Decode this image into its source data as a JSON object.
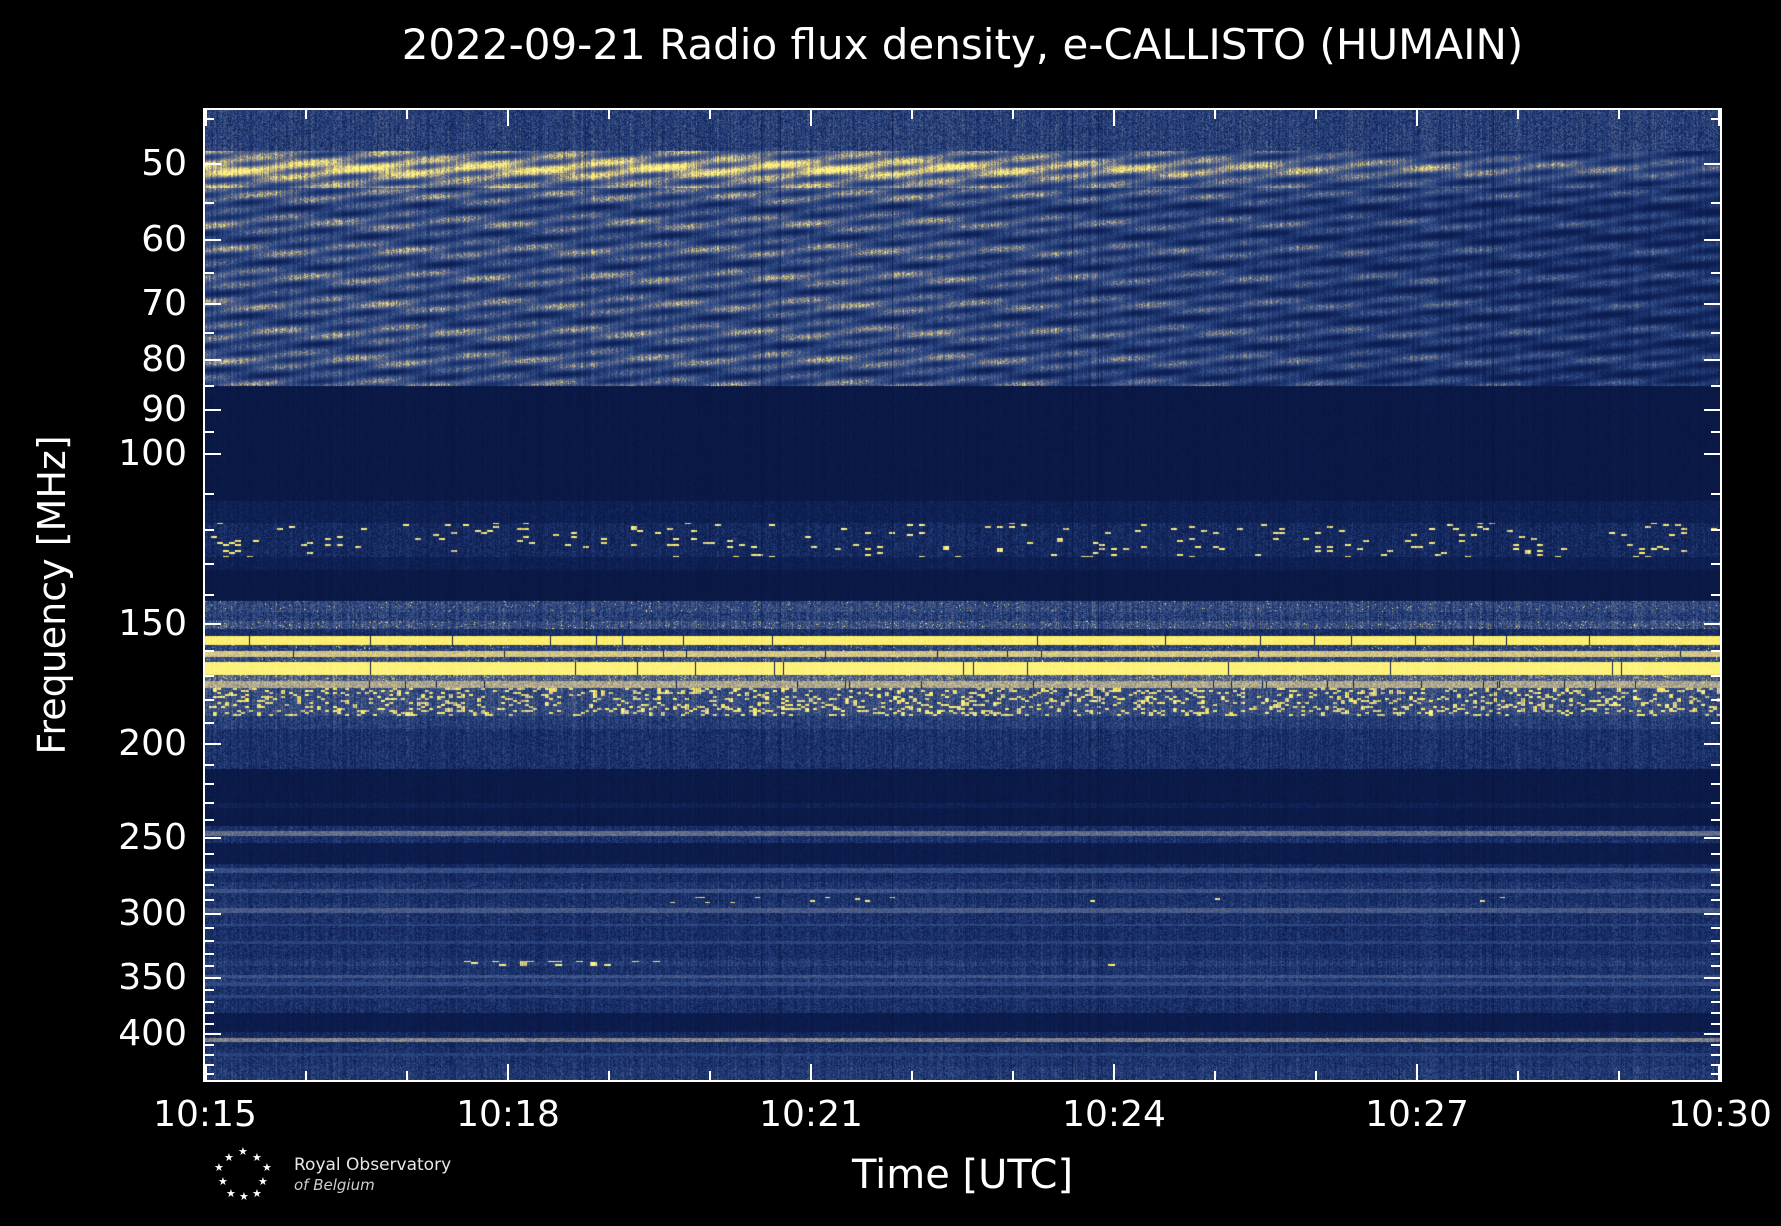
{
  "figure": {
    "background": "#000000",
    "text_color": "#ffffff",
    "axis_color": "#ffffff"
  },
  "logo": {
    "icon": "star-constellation",
    "line1": "Royal Observatory",
    "line2": "of Belgium"
  },
  "chart_data": {
    "type": "heatmap",
    "subtype": "radio-spectrogram",
    "title": "2022-09-21 Radio flux density, e-CALLISTO (HUMAIN)",
    "xlabel": "Time [UTC]",
    "ylabel": "Frequency [MHz]",
    "x_start": "10:15",
    "x_end": "10:30",
    "x_span_minutes": 15,
    "x_minor_step_minutes": 1,
    "x_ticks": [
      "10:15",
      "10:18",
      "10:21",
      "10:24",
      "10:27",
      "10:30"
    ],
    "y_scale": "log",
    "y_axis_inverted": true,
    "y_range_mhz": [
      44,
      446
    ],
    "y_ticks": [
      50,
      60,
      70,
      80,
      90,
      100,
      150,
      200,
      250,
      300,
      350,
      400
    ],
    "y_minor_ticks": [
      45,
      55,
      65,
      75,
      85,
      95,
      110,
      120,
      130,
      140,
      160,
      170,
      180,
      190,
      210,
      220,
      230,
      240,
      260,
      270,
      280,
      290,
      310,
      320,
      330,
      340,
      360,
      370,
      380,
      390,
      410,
      420,
      430,
      440
    ],
    "grid": false,
    "legend": "none",
    "colormap": [
      [
        0.0,
        [
          6,
          16,
          52
        ]
      ],
      [
        0.2,
        [
          15,
          34,
          88
        ]
      ],
      [
        0.4,
        [
          46,
          74,
          134
        ]
      ],
      [
        0.55,
        [
          96,
          106,
          136
        ]
      ],
      [
        0.7,
        [
          168,
          160,
          138
        ]
      ],
      [
        0.8,
        [
          212,
          200,
          146
        ]
      ],
      [
        0.9,
        [
          250,
          230,
          85
        ]
      ],
      [
        1.0,
        [
          255,
          247,
          140
        ]
      ]
    ],
    "bands": [
      {
        "f0": 44,
        "f1": 48.5,
        "type": "speckle",
        "base": 0.3,
        "noise": 0.3
      },
      {
        "f0": 48.5,
        "f1": 53,
        "type": "waves",
        "base": 0.4,
        "amp": 0.5,
        "tfade": 0.45
      },
      {
        "f0": 53,
        "f1": 85,
        "type": "waves",
        "base": 0.24,
        "amp": 0.34,
        "tfade": 0.35
      },
      {
        "f0": 85,
        "f1": 112,
        "type": "flat",
        "base": 0.1,
        "noise": 0.06
      },
      {
        "f0": 112,
        "f1": 118,
        "type": "speckle",
        "base": 0.15,
        "noise": 0.14
      },
      {
        "f0": 118,
        "f1": 128,
        "type": "dots",
        "base": 0.2,
        "noise": 0.2,
        "density": 0.045,
        "dotv": 0.97,
        "dash": 6
      },
      {
        "f0": 128,
        "f1": 132,
        "type": "speckle",
        "base": 0.15,
        "noise": 0.12
      },
      {
        "f0": 132,
        "f1": 142,
        "type": "flat",
        "base": 0.1,
        "noise": 0.05
      },
      {
        "f0": 142,
        "f1": 146,
        "type": "speckle",
        "base": 0.35,
        "noise": 0.3,
        "spike": 0.01
      },
      {
        "f0": 146,
        "f1": 149,
        "type": "speckle",
        "base": 0.3,
        "noise": 0.3
      },
      {
        "f0": 149,
        "f1": 152,
        "type": "speckle",
        "base": 0.38,
        "noise": 0.32,
        "spike": 0.02
      },
      {
        "f0": 152,
        "f1": 154.5,
        "type": "speckle",
        "base": 0.22,
        "noise": 0.2
      },
      {
        "f0": 154.5,
        "f1": 158,
        "type": "line",
        "base": 0.95,
        "noise": 0.07,
        "dropout": 0.012
      },
      {
        "f0": 158,
        "f1": 160,
        "type": "speckle",
        "base": 0.32,
        "noise": 0.28,
        "spike": 0.015
      },
      {
        "f0": 160,
        "f1": 162.5,
        "type": "line",
        "base": 0.8,
        "noise": 0.15,
        "dropout": 0.01
      },
      {
        "f0": 162.5,
        "f1": 164.5,
        "type": "speckle",
        "base": 0.36,
        "noise": 0.28,
        "spike": 0.02
      },
      {
        "f0": 164.5,
        "f1": 169.5,
        "type": "line",
        "base": 0.97,
        "noise": 0.06,
        "dropout": 0.012
      },
      {
        "f0": 169.5,
        "f1": 172,
        "type": "speckle",
        "base": 0.45,
        "noise": 0.3,
        "spike": 0.03
      },
      {
        "f0": 172,
        "f1": 175,
        "type": "line",
        "base": 0.72,
        "noise": 0.2,
        "dropout": 0.01
      },
      {
        "f0": 175,
        "f1": 187,
        "type": "dots",
        "base": 0.36,
        "noise": 0.28,
        "density": 0.22,
        "dotv": 0.92,
        "dash": 4
      },
      {
        "f0": 187,
        "f1": 193,
        "type": "speckle",
        "base": 0.3,
        "noise": 0.24
      },
      {
        "f0": 193,
        "f1": 212,
        "type": "speckle",
        "base": 0.24,
        "noise": 0.22
      },
      {
        "f0": 212,
        "f1": 230,
        "type": "flat",
        "base": 0.11,
        "noise": 0.07
      },
      {
        "f0": 230,
        "f1": 233,
        "type": "speckle",
        "base": 0.16,
        "noise": 0.12
      },
      {
        "f0": 233,
        "f1": 243,
        "type": "flat",
        "base": 0.11,
        "noise": 0.07
      },
      {
        "f0": 243,
        "f1": 246,
        "type": "speckle",
        "base": 0.24,
        "noise": 0.2
      },
      {
        "f0": 246,
        "f1": 249,
        "type": "line",
        "base": 0.55,
        "noise": 0.16
      },
      {
        "f0": 249,
        "f1": 253,
        "type": "speckle",
        "base": 0.24,
        "noise": 0.2
      },
      {
        "f0": 253,
        "f1": 266,
        "type": "flat",
        "base": 0.13,
        "noise": 0.08
      },
      {
        "f0": 266,
        "f1": 269,
        "type": "speckle",
        "base": 0.22,
        "noise": 0.16
      },
      {
        "f0": 269,
        "f1": 272,
        "type": "line",
        "base": 0.42,
        "noise": 0.14
      },
      {
        "f0": 272,
        "f1": 278,
        "type": "speckle",
        "base": 0.22,
        "noise": 0.18
      },
      {
        "f0": 278,
        "f1": 283,
        "type": "speckle",
        "base": 0.26,
        "noise": 0.22
      },
      {
        "f0": 283,
        "f1": 285.5,
        "type": "line",
        "base": 0.44,
        "noise": 0.16
      },
      {
        "f0": 285.5,
        "f1": 288,
        "type": "speckle",
        "base": 0.24,
        "noise": 0.2
      },
      {
        "f0": 288,
        "f1": 292,
        "type": "dots",
        "base": 0.24,
        "noise": 0.2,
        "density": 0.09,
        "dotv": 0.95,
        "dash": 5,
        "t0": 0.3,
        "t1": 0.46,
        "density_out": 0.004
      },
      {
        "f0": 292,
        "f1": 296,
        "type": "speckle",
        "base": 0.26,
        "noise": 0.22
      },
      {
        "f0": 296,
        "f1": 299,
        "type": "line",
        "base": 0.48,
        "noise": 0.15
      },
      {
        "f0": 299,
        "f1": 307,
        "type": "speckle",
        "base": 0.24,
        "noise": 0.22
      },
      {
        "f0": 307,
        "f1": 309,
        "type": "line",
        "base": 0.38,
        "noise": 0.14
      },
      {
        "f0": 309,
        "f1": 320,
        "type": "speckle",
        "base": 0.23,
        "noise": 0.2
      },
      {
        "f0": 320,
        "f1": 322,
        "type": "line",
        "base": 0.36,
        "noise": 0.14
      },
      {
        "f0": 322,
        "f1": 333,
        "type": "speckle",
        "base": 0.23,
        "noise": 0.2
      },
      {
        "f0": 333,
        "f1": 336,
        "type": "speckle",
        "base": 0.26,
        "noise": 0.22
      },
      {
        "f0": 336,
        "f1": 340,
        "type": "dots",
        "base": 0.3,
        "noise": 0.22,
        "density": 0.2,
        "dotv": 0.97,
        "dash": 7,
        "t0": 0.17,
        "t1": 0.3,
        "density_out": 0.004
      },
      {
        "f0": 340,
        "f1": 347,
        "type": "speckle",
        "base": 0.25,
        "noise": 0.2
      },
      {
        "f0": 347,
        "f1": 350,
        "type": "line",
        "base": 0.45,
        "noise": 0.16
      },
      {
        "f0": 350,
        "f1": 353,
        "type": "speckle",
        "base": 0.28,
        "noise": 0.22
      },
      {
        "f0": 353,
        "f1": 356,
        "type": "line",
        "base": 0.4,
        "noise": 0.14
      },
      {
        "f0": 356,
        "f1": 364,
        "type": "speckle",
        "base": 0.24,
        "noise": 0.2
      },
      {
        "f0": 364,
        "f1": 367,
        "type": "line",
        "base": 0.38,
        "noise": 0.14
      },
      {
        "f0": 367,
        "f1": 380,
        "type": "speckle",
        "base": 0.23,
        "noise": 0.2
      },
      {
        "f0": 380,
        "f1": 398,
        "type": "flat",
        "base": 0.13,
        "noise": 0.09
      },
      {
        "f0": 398,
        "f1": 403,
        "type": "speckle",
        "base": 0.2,
        "noise": 0.18
      },
      {
        "f0": 403,
        "f1": 407,
        "type": "line",
        "base": 0.62,
        "noise": 0.18
      },
      {
        "f0": 407,
        "f1": 412,
        "type": "speckle",
        "base": 0.22,
        "noise": 0.18
      },
      {
        "f0": 412,
        "f1": 418,
        "type": "speckle",
        "base": 0.24,
        "noise": 0.2
      },
      {
        "f0": 418,
        "f1": 421,
        "type": "line",
        "base": 0.36,
        "noise": 0.14
      },
      {
        "f0": 421,
        "f1": 432,
        "type": "speckle",
        "base": 0.26,
        "noise": 0.22
      },
      {
        "f0": 432,
        "f1": 446,
        "type": "speckle",
        "base": 0.28,
        "noise": 0.24
      }
    ]
  }
}
